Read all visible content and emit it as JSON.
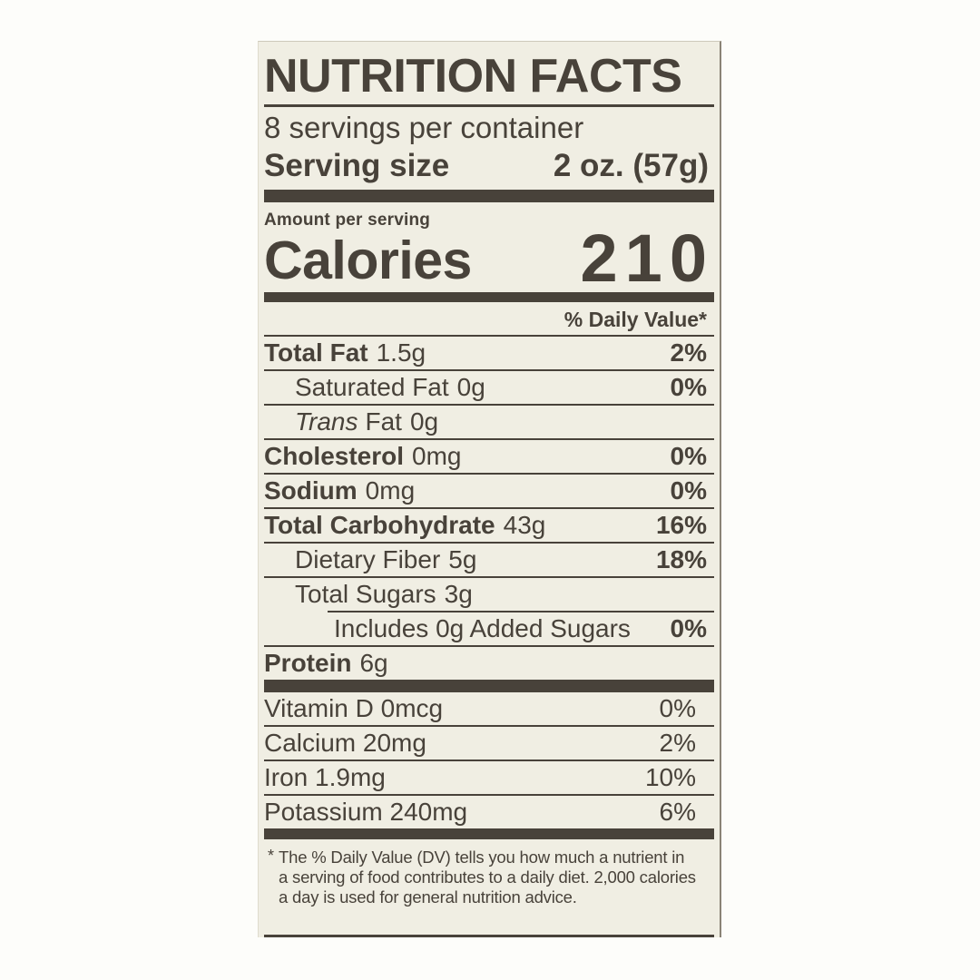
{
  "colors": {
    "page_background": "#fdfdfa",
    "label_background": "#f0eee3",
    "ink": "#48423a",
    "right_edge_line": "#8a8376"
  },
  "header": {
    "title": "NUTRITION FACTS",
    "servings_per_container": "8 servings per container",
    "serving_size_label": "Serving size",
    "serving_size_value": "2 oz. (57g)"
  },
  "calories": {
    "amount_per_serving_label": "Amount per serving",
    "label": "Calories",
    "value": "210"
  },
  "daily_value_header": "% Daily Value*",
  "nutrient_rows": [
    {
      "name": "Total Fat",
      "amount": "1.5g",
      "dv": "2%"
    },
    {
      "name": "Saturated Fat",
      "amount": "0g",
      "dv": "0%"
    },
    {
      "name_italic": "Trans",
      "name": "Fat",
      "amount": "0g",
      "dv": ""
    },
    {
      "name": "Cholesterol",
      "amount": "0mg",
      "dv": "0%"
    },
    {
      "name": "Sodium",
      "amount": "0mg",
      "dv": "0%"
    },
    {
      "name": "Total Carbohydrate",
      "amount": "43g",
      "dv": "16%"
    },
    {
      "name": "Dietary Fiber",
      "amount": "5g",
      "dv": "18%"
    },
    {
      "name": "Total Sugars",
      "amount": "3g",
      "dv": ""
    },
    {
      "name": "Includes 0g Added Sugars",
      "amount": "",
      "dv": "0%"
    },
    {
      "name": "Protein",
      "amount": "6g",
      "dv": ""
    }
  ],
  "vitamin_rows": [
    {
      "name": "Vitamin D 0mcg",
      "dv": "0%"
    },
    {
      "name": "Calcium 20mg",
      "dv": "2%"
    },
    {
      "name": "Iron 1.9mg",
      "dv": "10%"
    },
    {
      "name": "Potassium 240mg",
      "dv": "6%"
    }
  ],
  "footnote": {
    "asterisk": "*",
    "lines": [
      "The % Daily Value (DV) tells you how much a nutrient in",
      "a serving of food contributes to a daily diet. 2,000 calories",
      "a day is used for general nutrition advice."
    ]
  }
}
